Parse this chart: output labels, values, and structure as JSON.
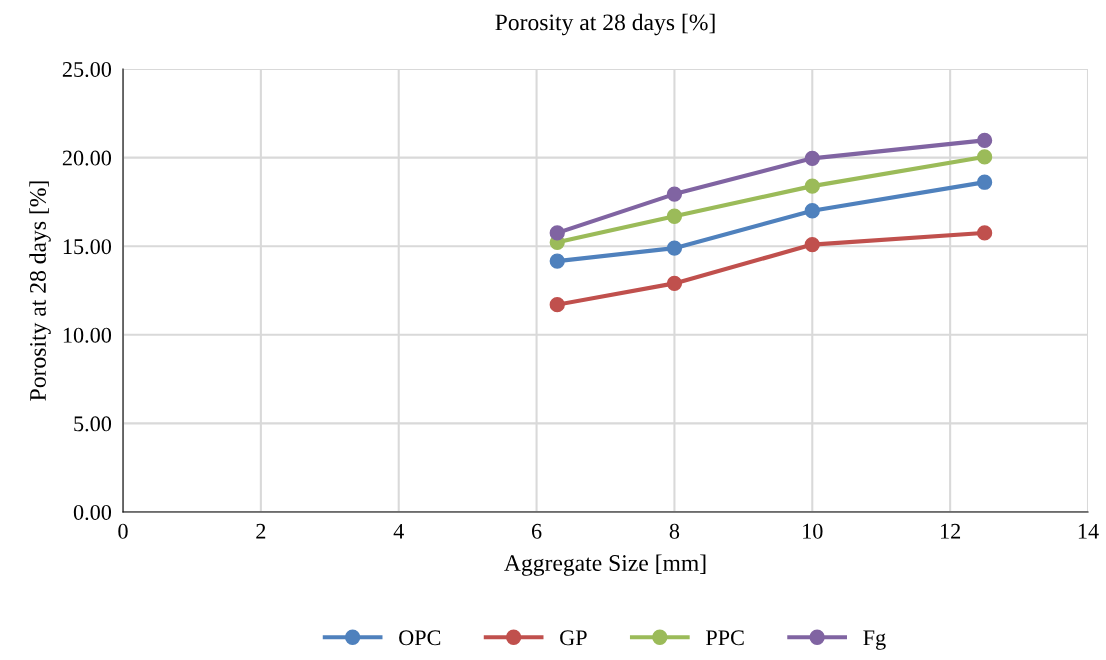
{
  "chart_data": {
    "type": "line",
    "title": "Porosity at 28 days [%]",
    "xlabel": "Aggregate Size [mm]",
    "ylabel": "Porosity at 28 days [%]",
    "x": [
      6.3,
      8,
      10,
      12.5
    ],
    "series": [
      {
        "name": "OPC",
        "color": "#4f81bd",
        "values": [
          14.16,
          14.89,
          17.0,
          18.61
        ]
      },
      {
        "name": "GP",
        "color": "#c0504d",
        "values": [
          11.7,
          12.9,
          15.09,
          15.75
        ]
      },
      {
        "name": "PPC",
        "color": "#9bbb59",
        "values": [
          15.22,
          16.69,
          18.39,
          20.04
        ]
      },
      {
        "name": "Fg",
        "color": "#8064a2",
        "values": [
          15.75,
          17.94,
          19.96,
          20.97
        ]
      }
    ],
    "xlim": [
      0,
      14
    ],
    "xticks": [
      0,
      2,
      4,
      6,
      8,
      10,
      12,
      14
    ],
    "ylim": [
      0,
      25
    ],
    "yticks": [
      {
        "value": 0,
        "label": "0.00"
      },
      {
        "value": 5,
        "label": "5.00"
      },
      {
        "value": 10,
        "label": "10.00"
      },
      {
        "value": 15,
        "label": "15.00"
      },
      {
        "value": 20,
        "label": "20.00"
      },
      {
        "value": 25,
        "label": "25.00"
      }
    ],
    "grid": true,
    "legend": "bottom",
    "marker": "circle",
    "line_style": "solid"
  }
}
